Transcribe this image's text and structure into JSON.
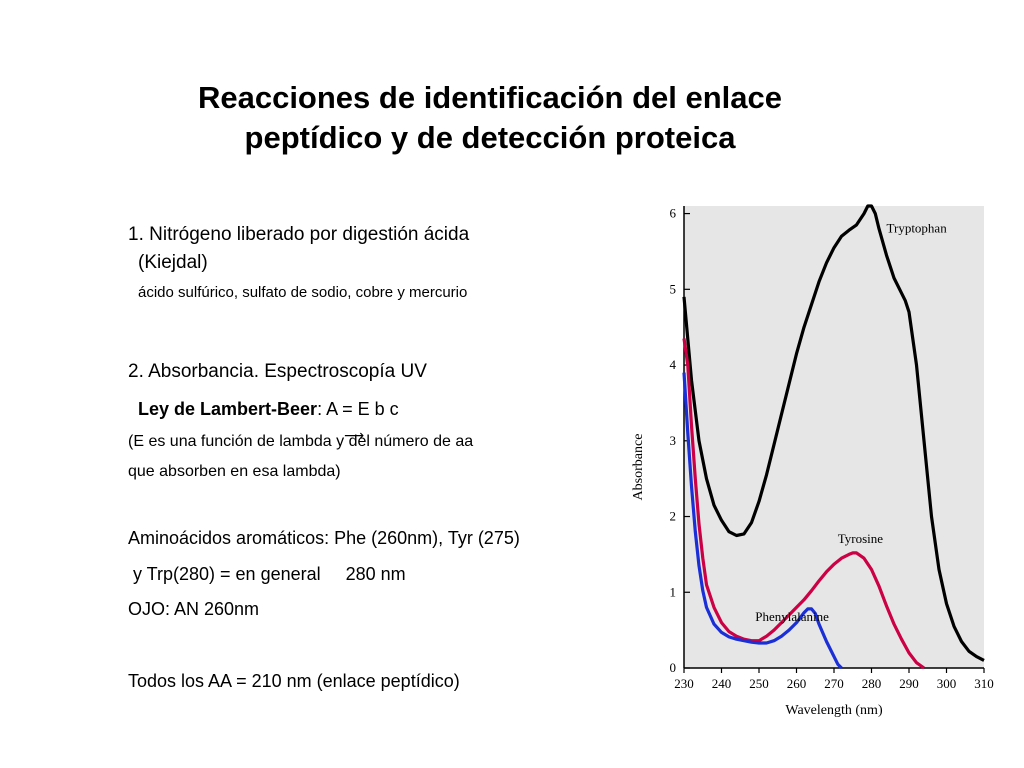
{
  "slide": {
    "title_line1": "Reacciones de identificación del enlace",
    "title_line2": "peptídico y de detección proteica"
  },
  "body": {
    "item1_line1": "1. Nitrógeno liberado por digestión ácida",
    "item1_line2": "(Kiejdal)",
    "item1_detail": "ácido sulfúrico, sulfato de sodio, cobre y mercurio",
    "item2_heading": "2. Absorbancia. Espectroscopía UV",
    "law_name": "Ley de Lambert-Beer",
    "law_formula": ": A = E b c",
    "law_note_part1": "(E es una función de lambda ",
    "law_note_y": "y",
    "law_note_part2": " del número de aa",
    "law_note_line2": "que absorben en esa lambda)",
    "aromatic_line1": "Aminoácidos aromáticos: Phe (260nm), Tyr (275)",
    "aromatic_line2": " y Trp(280) = en general     280 nm",
    "ojo": "OJO: AN 260nm",
    "all_aa": "Todos los AA = 210 nm (enlace peptídico)"
  },
  "chart_data": {
    "type": "line",
    "xlabel": "Wavelength (nm)",
    "ylabel": "Absorbance",
    "xlim": [
      230,
      310
    ],
    "ylim": [
      0,
      6.1
    ],
    "xticks": [
      230,
      240,
      250,
      260,
      270,
      280,
      290,
      300,
      310
    ],
    "yticks": [
      0,
      1,
      2,
      3,
      4,
      5,
      6
    ],
    "grid": false,
    "series": [
      {
        "name": "Tryptophan",
        "color": "#000000",
        "label_at": [
          284,
          5.75
        ],
        "points": [
          [
            230,
            4.9
          ],
          [
            232,
            3.8
          ],
          [
            234,
            3.0
          ],
          [
            236,
            2.5
          ],
          [
            238,
            2.15
          ],
          [
            240,
            1.95
          ],
          [
            242,
            1.8
          ],
          [
            244,
            1.75
          ],
          [
            246,
            1.77
          ],
          [
            248,
            1.92
          ],
          [
            250,
            2.2
          ],
          [
            252,
            2.55
          ],
          [
            254,
            2.95
          ],
          [
            256,
            3.35
          ],
          [
            258,
            3.75
          ],
          [
            260,
            4.15
          ],
          [
            262,
            4.5
          ],
          [
            264,
            4.8
          ],
          [
            266,
            5.1
          ],
          [
            268,
            5.35
          ],
          [
            270,
            5.55
          ],
          [
            272,
            5.7
          ],
          [
            274,
            5.78
          ],
          [
            276,
            5.85
          ],
          [
            278,
            6.0
          ],
          [
            279,
            6.1
          ],
          [
            280,
            6.1
          ],
          [
            281,
            6.0
          ],
          [
            282,
            5.8
          ],
          [
            284,
            5.45
          ],
          [
            286,
            5.15
          ],
          [
            288,
            4.95
          ],
          [
            289,
            4.85
          ],
          [
            290,
            4.7
          ],
          [
            292,
            4.0
          ],
          [
            294,
            3.0
          ],
          [
            296,
            2.0
          ],
          [
            298,
            1.3
          ],
          [
            300,
            0.85
          ],
          [
            302,
            0.55
          ],
          [
            304,
            0.35
          ],
          [
            306,
            0.22
          ],
          [
            308,
            0.15
          ],
          [
            310,
            0.1
          ]
        ]
      },
      {
        "name": "Tyrosine",
        "color": "#cc0044",
        "label_at": [
          271,
          1.65
        ],
        "points": [
          [
            230,
            4.35
          ],
          [
            231,
            4.0
          ],
          [
            232,
            3.2
          ],
          [
            233,
            2.5
          ],
          [
            234,
            1.9
          ],
          [
            235,
            1.45
          ],
          [
            236,
            1.1
          ],
          [
            238,
            0.8
          ],
          [
            240,
            0.6
          ],
          [
            242,
            0.48
          ],
          [
            244,
            0.42
          ],
          [
            246,
            0.38
          ],
          [
            248,
            0.36
          ],
          [
            250,
            0.36
          ],
          [
            252,
            0.42
          ],
          [
            254,
            0.5
          ],
          [
            256,
            0.6
          ],
          [
            258,
            0.7
          ],
          [
            260,
            0.8
          ],
          [
            262,
            0.9
          ],
          [
            264,
            1.02
          ],
          [
            266,
            1.15
          ],
          [
            268,
            1.27
          ],
          [
            270,
            1.37
          ],
          [
            272,
            1.45
          ],
          [
            274,
            1.5
          ],
          [
            275,
            1.52
          ],
          [
            276,
            1.52
          ],
          [
            278,
            1.45
          ],
          [
            280,
            1.3
          ],
          [
            282,
            1.08
          ],
          [
            284,
            0.82
          ],
          [
            286,
            0.58
          ],
          [
            288,
            0.38
          ],
          [
            290,
            0.2
          ],
          [
            292,
            0.07
          ],
          [
            294,
            0.0
          ]
        ]
      },
      {
        "name": "Phenylalanine",
        "color": "#1a2fd6",
        "label_at": [
          249,
          0.62
        ],
        "points": [
          [
            230,
            3.9
          ],
          [
            231,
            3.1
          ],
          [
            232,
            2.4
          ],
          [
            233,
            1.8
          ],
          [
            234,
            1.35
          ],
          [
            235,
            1.02
          ],
          [
            236,
            0.8
          ],
          [
            238,
            0.58
          ],
          [
            240,
            0.47
          ],
          [
            242,
            0.41
          ],
          [
            244,
            0.38
          ],
          [
            246,
            0.36
          ],
          [
            248,
            0.34
          ],
          [
            250,
            0.33
          ],
          [
            252,
            0.33
          ],
          [
            254,
            0.36
          ],
          [
            256,
            0.42
          ],
          [
            258,
            0.5
          ],
          [
            260,
            0.6
          ],
          [
            262,
            0.73
          ],
          [
            263,
            0.78
          ],
          [
            264,
            0.78
          ],
          [
            265,
            0.72
          ],
          [
            266,
            0.58
          ],
          [
            268,
            0.35
          ],
          [
            270,
            0.15
          ],
          [
            271,
            0.05
          ],
          [
            272,
            0.0
          ]
        ]
      }
    ]
  },
  "colors": {
    "plot_background": "#e6e6e6",
    "tryptophan": "#000000",
    "tyrosine": "#cc0044",
    "phenylalanine": "#1a2fd6"
  }
}
